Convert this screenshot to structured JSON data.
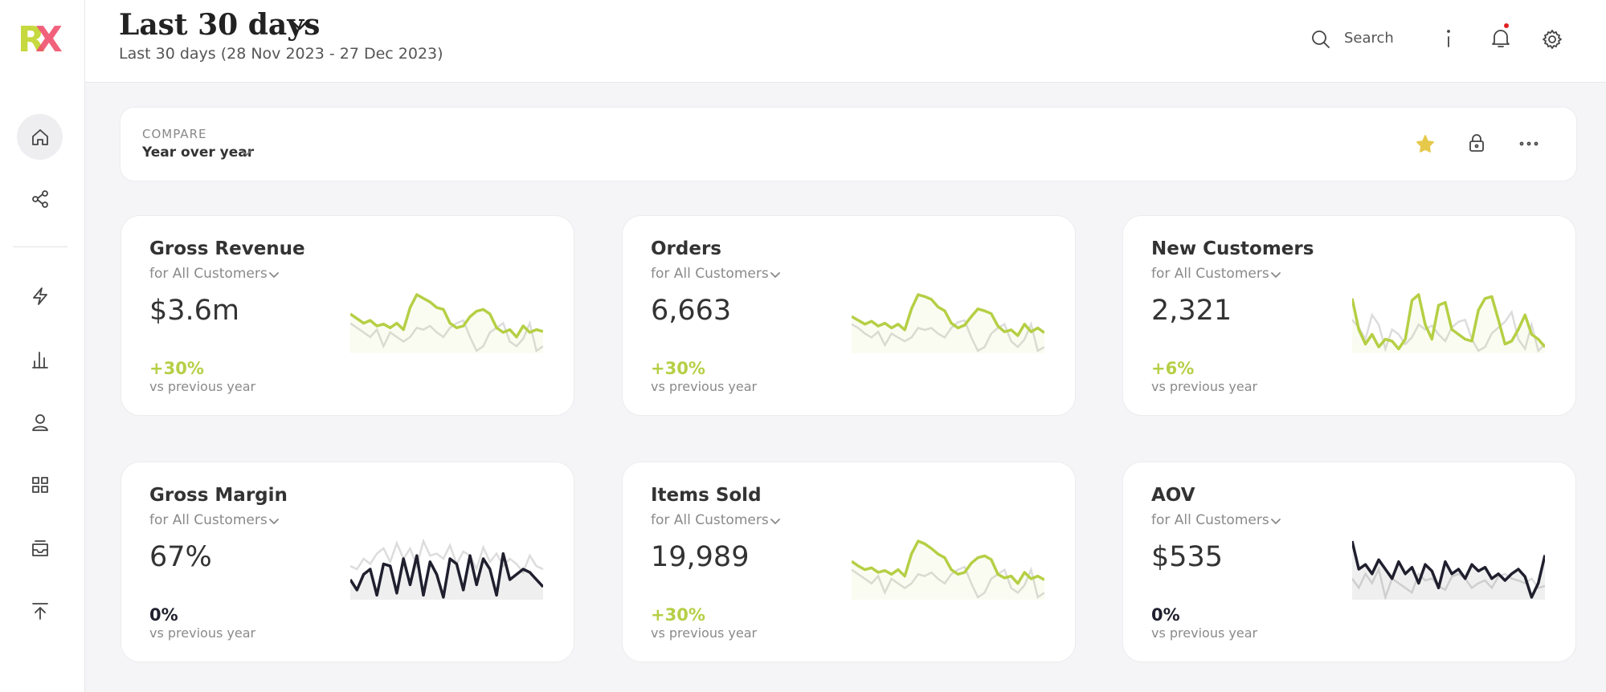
{
  "header": {
    "title": "Last 30 days",
    "subtitle": "Last 30 days (28 Nov 2023 - 27 Dec 2023)",
    "search": "Search"
  },
  "compare": {
    "label": "COMPARE",
    "value": "Year over year"
  },
  "cards": [
    {
      "title": "Gross Revenue",
      "segment": "for All Customers",
      "value": "$3.6m",
      "change": "+30%",
      "note": "vs previous year",
      "color": "#b5cf45",
      "sparkline": {
        "current": [
          55,
          50,
          45,
          48,
          42,
          44,
          40,
          45,
          38,
          62,
          76,
          72,
          68,
          62,
          60,
          45,
          40,
          42,
          52,
          58,
          60,
          55,
          40,
          35,
          38,
          30,
          42,
          35,
          38,
          36
        ],
        "previous": [
          45,
          40,
          35,
          30,
          38,
          20,
          35,
          30,
          25,
          30,
          40,
          38,
          42,
          35,
          30,
          40,
          45,
          48,
          30,
          15,
          20,
          35,
          40,
          45,
          25,
          20,
          28,
          45,
          15,
          20
        ]
      }
    },
    {
      "title": "Orders",
      "segment": "for All Customers",
      "value": "6,663",
      "change": "+30%",
      "note": "vs previous year",
      "color": "#b5cf45",
      "sparkline": {
        "current": [
          52,
          48,
          44,
          47,
          42,
          45,
          40,
          44,
          38,
          60,
          75,
          73,
          70,
          62,
          58,
          45,
          40,
          43,
          52,
          60,
          58,
          55,
          42,
          36,
          38,
          32,
          44,
          36,
          40,
          35
        ],
        "previous": [
          44,
          40,
          34,
          30,
          36,
          22,
          34,
          30,
          26,
          30,
          40,
          38,
          40,
          34,
          30,
          40,
          46,
          48,
          30,
          16,
          20,
          34,
          40,
          44,
          26,
          20,
          28,
          44,
          16,
          20
        ]
      }
    },
    {
      "title": "New Customers",
      "segment": "for All Customers",
      "value": "2,321",
      "change": "+6%",
      "note": "vs previous year",
      "color": "#b5cf45",
      "sparkline": {
        "current": [
          72,
          40,
          25,
          35,
          22,
          30,
          28,
          20,
          30,
          70,
          76,
          45,
          30,
          65,
          68,
          40,
          35,
          30,
          28,
          60,
          72,
          74,
          50,
          25,
          28,
          40,
          55,
          35,
          30,
          22
        ],
        "previous": [
          50,
          42,
          30,
          55,
          45,
          20,
          40,
          35,
          25,
          32,
          45,
          40,
          44,
          35,
          28,
          42,
          48,
          50,
          30,
          18,
          22,
          36,
          42,
          48,
          58,
          30,
          20,
          45,
          18,
          25
        ]
      }
    },
    {
      "title": "Gross Margin",
      "segment": "for All Customers",
      "value": "67%",
      "change": "0%",
      "note": "vs previous year",
      "color": "#1f1f2e",
      "sparkline": {
        "current": [
          35,
          25,
          40,
          45,
          20,
          50,
          48,
          22,
          55,
          30,
          58,
          20,
          52,
          40,
          18,
          55,
          50,
          25,
          58,
          30,
          55,
          45,
          20,
          60,
          35,
          40,
          45,
          42,
          35,
          28
        ],
        "previous": [
          48,
          45,
          55,
          50,
          60,
          65,
          52,
          70,
          55,
          65,
          48,
          72,
          58,
          60,
          55,
          68,
          50,
          62,
          58,
          45,
          66,
          52,
          60,
          48,
          55,
          50,
          42,
          58,
          48,
          45
        ]
      }
    },
    {
      "title": "Items Sold",
      "segment": "for All Customers",
      "value": "19,989",
      "change": "+30%",
      "note": "vs previous year",
      "color": "#b5cf45",
      "sparkline": {
        "current": [
          54,
          49,
          45,
          47,
          42,
          44,
          40,
          45,
          38,
          62,
          76,
          73,
          68,
          62,
          58,
          45,
          40,
          42,
          52,
          58,
          60,
          56,
          40,
          36,
          38,
          30,
          42,
          35,
          38,
          34
        ],
        "previous": [
          45,
          40,
          35,
          30,
          38,
          20,
          35,
          30,
          25,
          30,
          40,
          38,
          42,
          35,
          30,
          40,
          45,
          48,
          30,
          15,
          20,
          35,
          40,
          45,
          25,
          20,
          28,
          45,
          15,
          20
        ]
      }
    },
    {
      "title": "AOV",
      "segment": "for All Customers",
      "value": "$535",
      "change": "0%",
      "note": "vs previous year",
      "color": "#1f1f2e",
      "sparkline": {
        "current": [
          80,
          50,
          55,
          45,
          60,
          50,
          40,
          58,
          45,
          52,
          35,
          55,
          48,
          30,
          58,
          45,
          50,
          40,
          55,
          48,
          52,
          40,
          45,
          38,
          45,
          50,
          42,
          20,
          35,
          65
        ],
        "previous": [
          40,
          30,
          45,
          35,
          50,
          20,
          40,
          35,
          30,
          25,
          45,
          38,
          40,
          32,
          28,
          42,
          45,
          40,
          30,
          35,
          38,
          30,
          42,
          45,
          40,
          38,
          35,
          40,
          30,
          32
        ]
      }
    }
  ]
}
